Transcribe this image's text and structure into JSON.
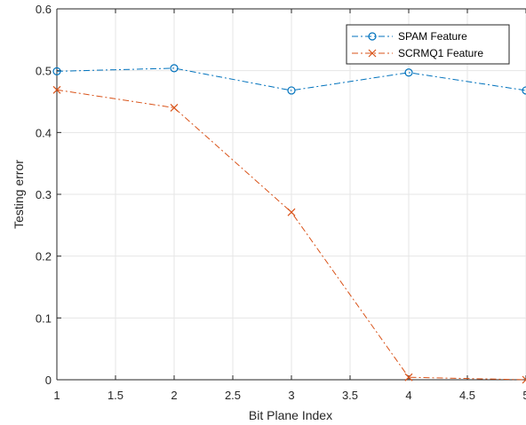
{
  "chart_data": {
    "type": "line",
    "title": "",
    "xlabel": "Bit Plane Index",
    "ylabel": "Testing error",
    "xlim": [
      1,
      5
    ],
    "ylim": [
      0,
      0.6
    ],
    "xticks": [
      1,
      1.5,
      2,
      2.5,
      3,
      3.5,
      4,
      4.5,
      5
    ],
    "xtick_labels": [
      "1",
      "1.5",
      "2",
      "2.5",
      "3",
      "3.5",
      "4",
      "4.5",
      "5"
    ],
    "yticks": [
      0,
      0.1,
      0.2,
      0.3,
      0.4,
      0.5,
      0.6
    ],
    "ytick_labels": [
      "0",
      "0.1",
      "0.2",
      "0.3",
      "0.4",
      "0.5",
      "0.6"
    ],
    "grid": true,
    "legend_position": "top-right",
    "x": [
      1,
      2,
      3,
      4,
      5
    ],
    "series": [
      {
        "name": "SPAM Feature",
        "values": [
          0.499,
          0.504,
          0.468,
          0.497,
          0.468
        ],
        "color": "#0072BD",
        "marker": "circle",
        "line_style": "dash-dot"
      },
      {
        "name": "SCRMQ1 Feature",
        "values": [
          0.469,
          0.44,
          0.271,
          0.004,
          0.0
        ],
        "color": "#D95319",
        "marker": "x",
        "line_style": "dash-dot"
      }
    ]
  }
}
